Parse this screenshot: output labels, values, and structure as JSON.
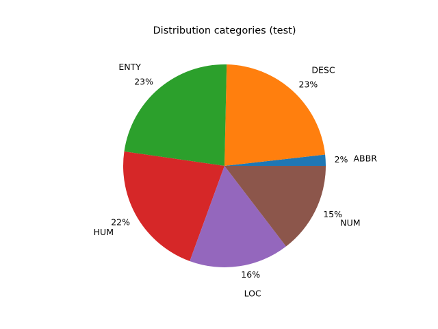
{
  "chart_data": {
    "type": "pie",
    "title": "Distribution categories (test)",
    "start_angle_deg": 0,
    "direction": "counterclockwise",
    "slices": [
      {
        "label": "ABBR",
        "value": 1.8,
        "pct_label": "2%",
        "color": "#1f77b4"
      },
      {
        "label": "DESC",
        "value": 23.2,
        "pct_label": "23%",
        "color": "#ff7f0e"
      },
      {
        "label": "ENTY",
        "value": 23.4,
        "pct_label": "23%",
        "color": "#2ca02c"
      },
      {
        "label": "HUM",
        "value": 22.0,
        "pct_label": "22%",
        "color": "#d62728"
      },
      {
        "label": "LOC",
        "value": 16.2,
        "pct_label": "16%",
        "color": "#9467bd"
      },
      {
        "label": "NUM",
        "value": 14.8,
        "pct_label": "15%",
        "color": "#8c564b"
      }
    ]
  }
}
